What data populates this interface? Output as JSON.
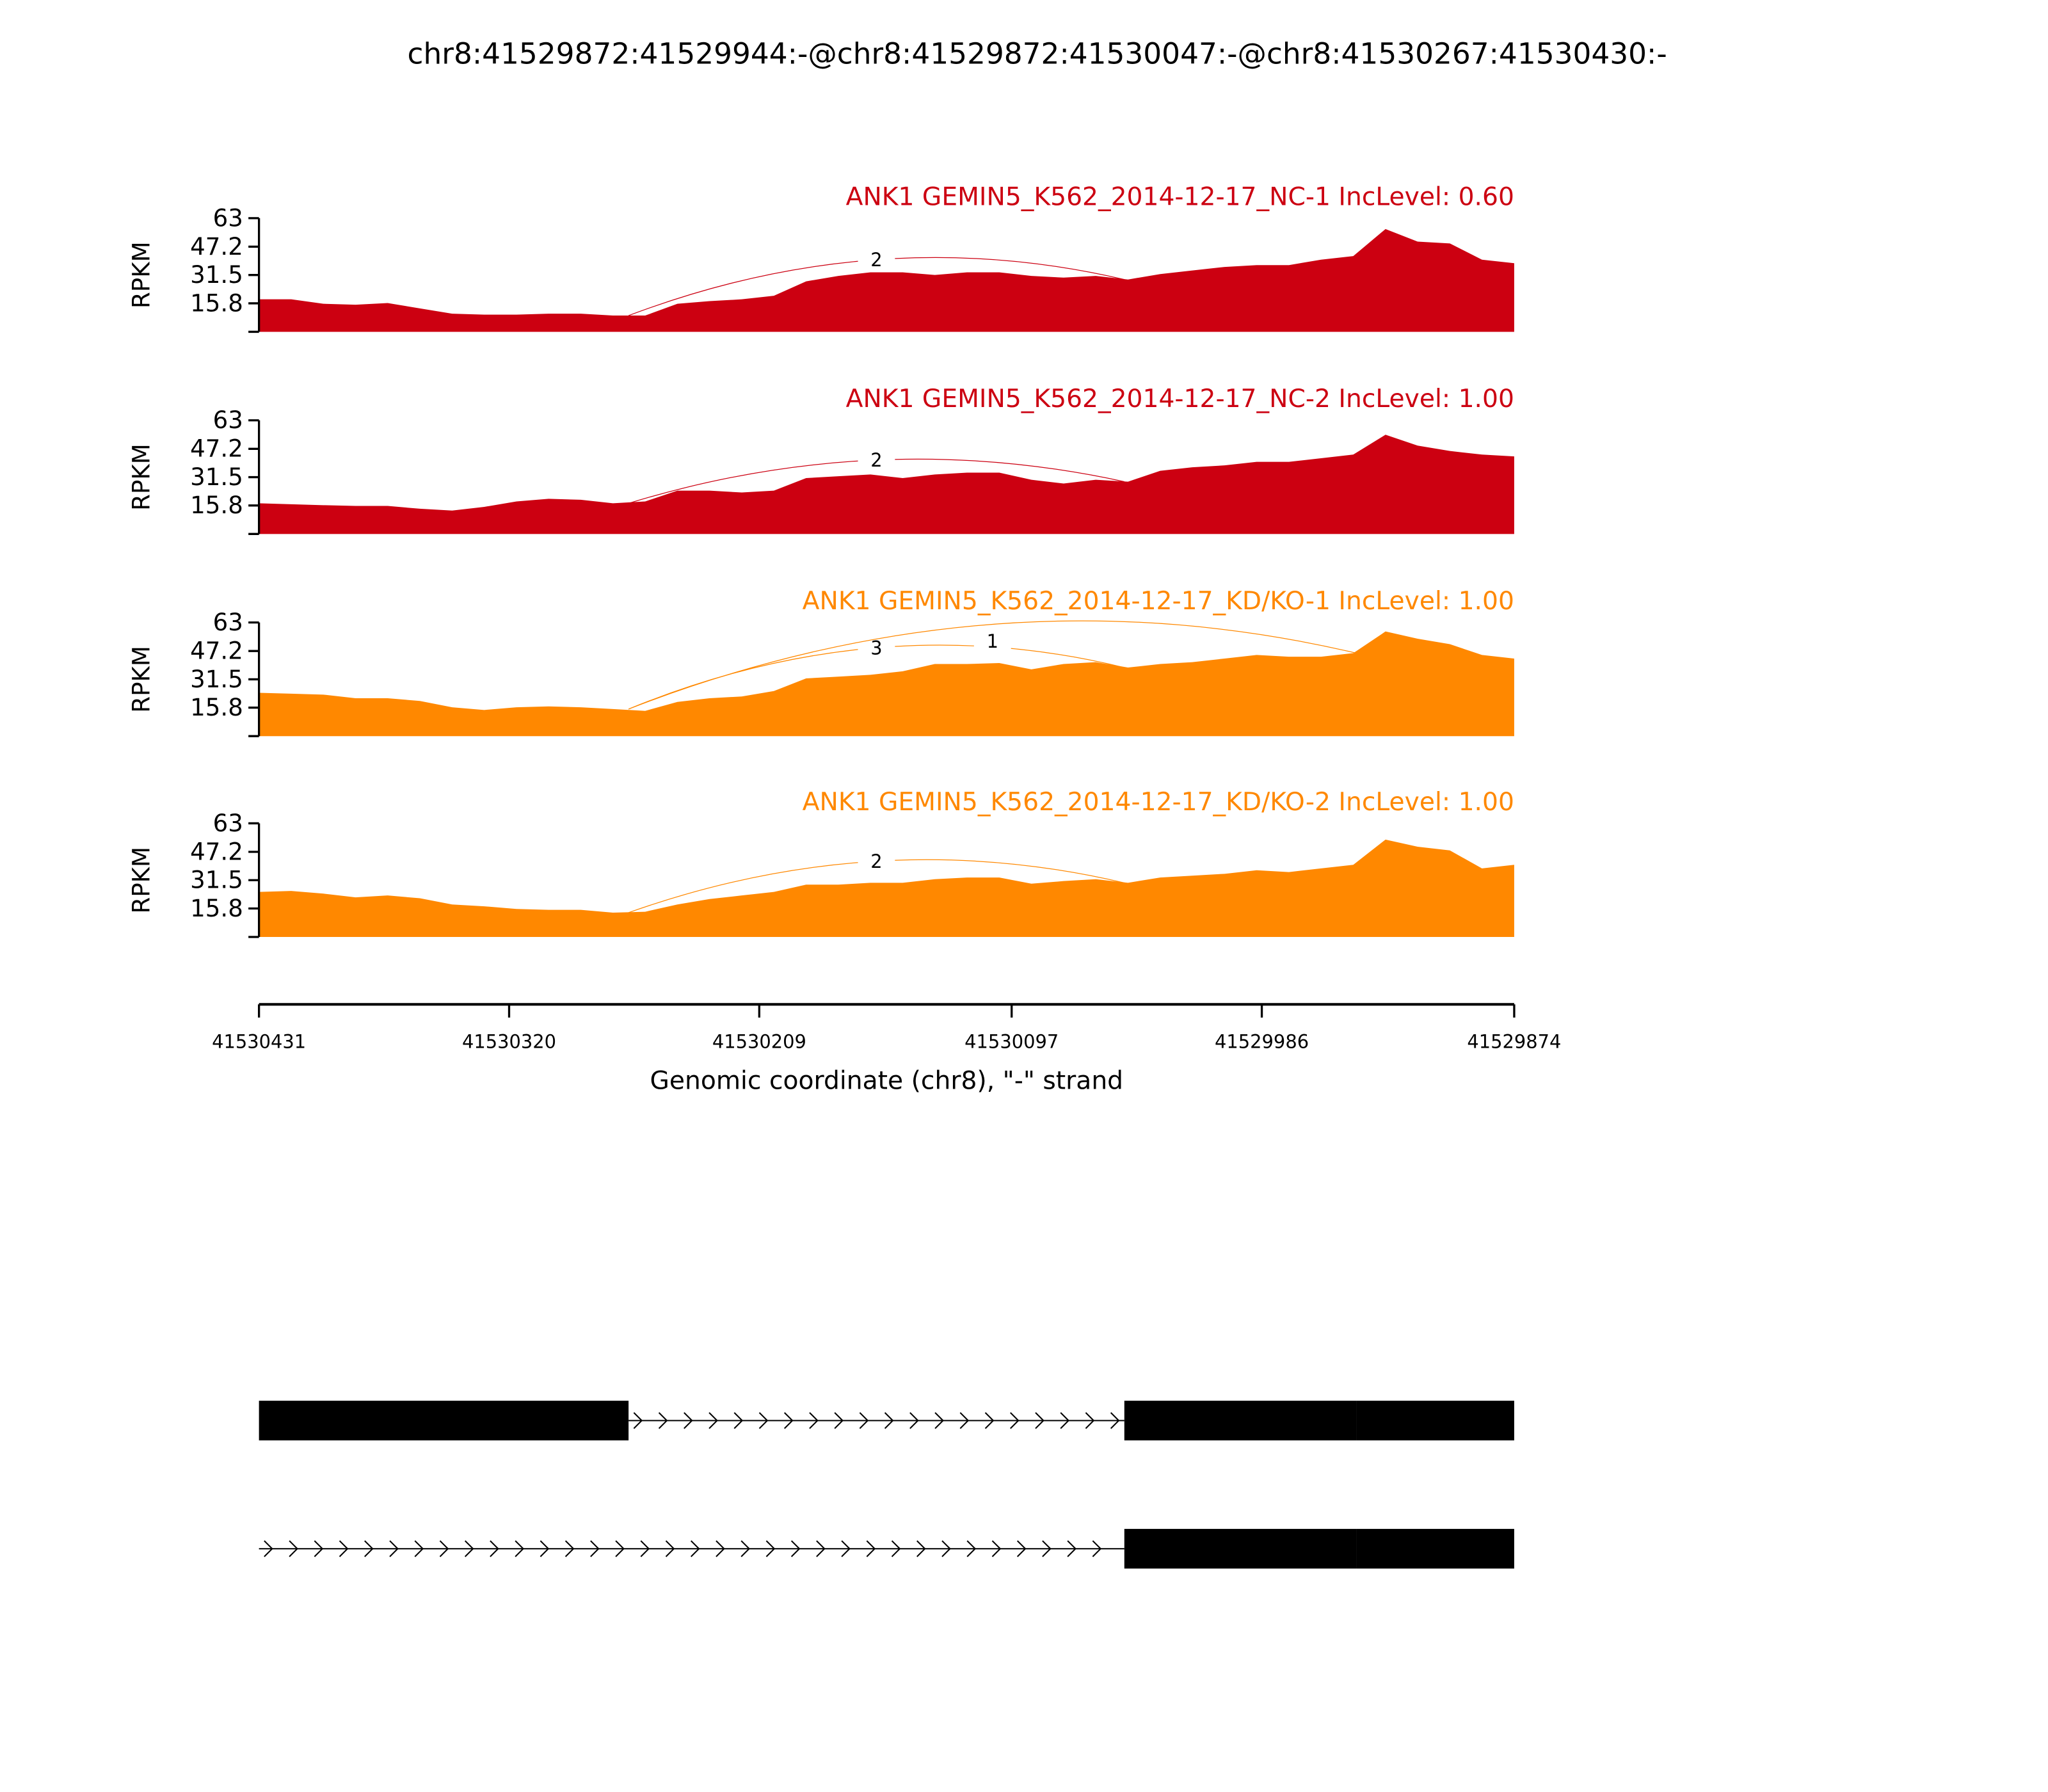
{
  "title": "chr8:41529872:41529944:-@chr8:41529872:41530047:-@chr8:41530267:41530430:-",
  "colors": {
    "nc": "#cc0011",
    "kd": "#ff8800",
    "axis": "#000000"
  },
  "chart_data": {
    "type": "area",
    "title": "chr8:41529872:41529944:-@chr8:41529872:41530047:-@chr8:41530267:41530430:-",
    "xlabel": "Genomic coordinate (chr8), \"-\" strand",
    "ylabel": "RPKM",
    "xlim": [
      41530431,
      41529874
    ],
    "ylim": [
      0,
      63
    ],
    "yticks": [
      0,
      15.8,
      31.5,
      47.2,
      63
    ],
    "ytick_labels": [
      "",
      "15.8",
      "31.5",
      "47.2",
      "63"
    ],
    "xticks": [
      41530431,
      41530320,
      41530209,
      41530097,
      41529986,
      41529874
    ],
    "xtick_labels": [
      "41530431",
      "41530320",
      "41530209",
      "41530097",
      "41529986",
      "41529874"
    ],
    "sample_positions_note": "coverage values sampled at 40 evenly spaced coordinates from 41530431 to 41529874",
    "series": [
      {
        "name": "ANK1 GEMIN5_K562_2014-12-17_NC-1 IncLevel: 0.60",
        "group": "nc",
        "values": [
          18,
          18,
          15.5,
          15,
          16,
          13,
          10,
          9.5,
          9.5,
          10,
          10,
          9,
          9,
          15.5,
          17,
          18,
          20,
          28,
          31,
          33,
          33,
          31.5,
          33,
          33,
          31,
          30,
          31,
          29,
          32,
          34,
          36,
          37,
          37,
          40,
          42,
          57,
          50,
          49,
          40,
          38
        ],
        "junctions": [
          {
            "from": 41530267,
            "to": 41530047,
            "count": "2",
            "peak": 40
          }
        ]
      },
      {
        "name": "ANK1 GEMIN5_K562_2014-12-17_NC-2 IncLevel: 1.00",
        "group": "nc",
        "values": [
          17,
          16.5,
          16,
          15.5,
          15.5,
          14,
          13,
          15,
          18,
          19.5,
          19,
          17,
          18,
          24,
          24,
          23,
          24,
          31,
          32,
          33,
          31,
          33,
          34,
          34,
          30,
          28,
          30,
          29,
          35,
          37,
          38,
          40,
          40,
          42,
          44,
          55,
          49,
          46,
          44,
          43
        ],
        "junctions": [
          {
            "from": 41530267,
            "to": 41530047,
            "count": "2",
            "peak": 41
          }
        ]
      },
      {
        "name": "ANK1 GEMIN5_K562_2014-12-17_KD/KO-1 IncLevel: 1.00",
        "group": "kd",
        "values": [
          24,
          23.5,
          23,
          21,
          21,
          19.5,
          16,
          14.5,
          16,
          16.5,
          16,
          15,
          14,
          19,
          21,
          22,
          25,
          32,
          33,
          34,
          36,
          40,
          40,
          40.5,
          37,
          40,
          41,
          38,
          40,
          41,
          43,
          45,
          44,
          44,
          46,
          58,
          54,
          51,
          45,
          43
        ],
        "junctions": [
          {
            "from": 41530267,
            "to": 41530047,
            "count": "3",
            "peak": 49
          },
          {
            "from": 41530267,
            "to": 41529944,
            "count": "1",
            "peak": 62
          }
        ]
      },
      {
        "name": "ANK1 GEMIN5_K562_2014-12-17_KD/KO-2 IncLevel: 1.00",
        "group": "kd",
        "values": [
          25,
          25.5,
          24,
          22,
          23,
          21.5,
          18,
          17,
          15.5,
          15,
          15,
          13.5,
          14,
          18,
          21,
          23,
          25,
          29,
          29,
          30,
          30,
          32,
          33,
          33,
          29.5,
          31,
          32,
          30,
          33,
          34,
          35,
          37,
          36,
          38,
          40,
          54,
          50,
          48,
          38,
          40
        ],
        "junctions": [
          {
            "from": 41530267,
            "to": 41530047,
            "count": "2",
            "peak": 42
          }
        ]
      }
    ],
    "transcripts": [
      {
        "exons": [
          [
            41530431,
            41530267
          ],
          [
            41530047,
            41529944
          ],
          [
            41529944,
            41529874
          ]
        ],
        "introns": [
          [
            41530267,
            41530047
          ]
        ]
      },
      {
        "exons": [
          [
            41530047,
            41529944
          ],
          [
            41529944,
            41529874
          ]
        ],
        "introns": [
          [
            41530431,
            41530047
          ]
        ]
      }
    ]
  }
}
